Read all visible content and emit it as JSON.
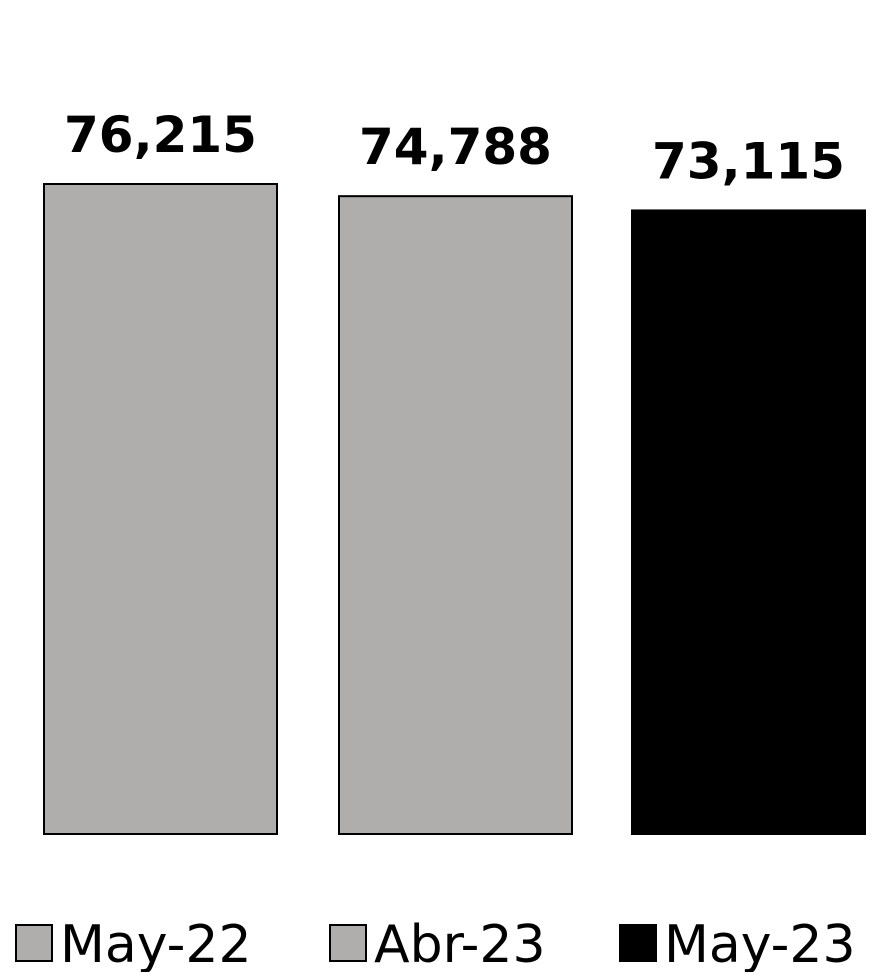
{
  "chart_data": {
    "type": "bar",
    "categories": [
      "May-22",
      "Abr-23",
      "May-23"
    ],
    "values": [
      76215,
      74788,
      73115
    ],
    "value_labels": [
      "76,215",
      "74,788",
      "73,115"
    ],
    "colors": [
      "#b0adad",
      "#b0adad",
      "#000000"
    ],
    "legend": {
      "position": "bottom",
      "entries": [
        "May-22",
        "Abr-23",
        "May-23"
      ]
    },
    "axes_visible": false,
    "grid": false,
    "title": "",
    "xlabel": "",
    "ylabel": ""
  }
}
